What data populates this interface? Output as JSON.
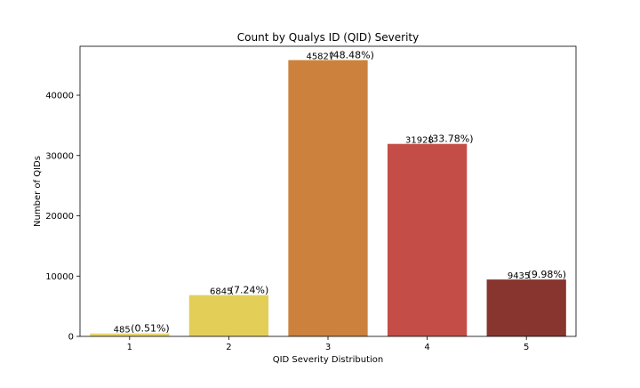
{
  "chart_data": {
    "type": "bar",
    "title": "Count by Qualys ID (QID) Severity",
    "xlabel": "QID Severity Distribution",
    "ylabel": "Number of QIDs",
    "categories": [
      "1",
      "2",
      "3",
      "4",
      "5"
    ],
    "values": [
      485,
      6845,
      45827,
      31928,
      9435
    ],
    "value_labels": [
      "485",
      "6845",
      "45827",
      "31928",
      "9435"
    ],
    "percent_labels": [
      "(0.51%)",
      "(7.24%)",
      "(48.48%)",
      "(33.78%)",
      "(9.98%)"
    ],
    "colors": [
      "#e8d46e",
      "#e3cf57",
      "#cc823c",
      "#c44d47",
      "#883530"
    ],
    "ylim": [
      0,
      48119
    ],
    "yticks": [
      0,
      10000,
      20000,
      30000,
      40000
    ],
    "ytick_labels": [
      "0",
      "10000",
      "20000",
      "30000",
      "40000"
    ],
    "grid": false,
    "legend": "none"
  }
}
